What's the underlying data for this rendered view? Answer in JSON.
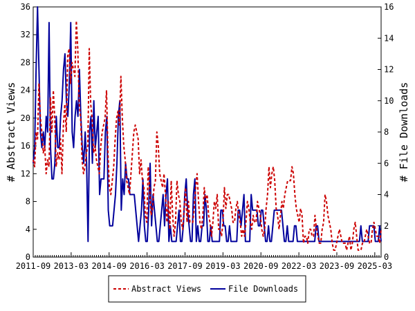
{
  "chart_data": {
    "type": "line",
    "ylabel_left": "# Abstract Views",
    "ylabel_right": "# File Downloads",
    "ylim_left": [
      0,
      36
    ],
    "ylim_right": [
      0,
      16
    ],
    "yticks_left": [
      "0",
      "4",
      "8",
      "12",
      "16",
      "20",
      "24",
      "28",
      "32",
      "36"
    ],
    "yticks_right": [
      "0",
      "2",
      "4",
      "6",
      "8",
      "10",
      "12",
      "14",
      "16"
    ],
    "xticks": [
      "2011-09",
      "2013-03",
      "2014-09",
      "2016-03",
      "2017-09",
      "2019-03",
      "2020-09",
      "2022-03",
      "2023-09",
      "2025-03"
    ],
    "x_start": "2011-09",
    "x_end": "2025-06",
    "grid": false,
    "legend_position": "bottom",
    "series": [
      {
        "name": "Abstract Views",
        "axis": "left",
        "color": "#cc0000",
        "style": "dashed",
        "values": [
          14,
          13,
          18,
          17,
          25,
          20,
          18,
          15,
          16,
          12,
          14,
          13,
          23,
          18,
          24,
          20,
          13,
          15,
          14,
          17,
          12,
          19,
          22,
          18,
          29,
          30,
          25,
          28,
          27,
          26,
          34,
          30,
          22,
          20,
          14,
          12,
          13,
          15,
          16,
          30,
          22,
          20,
          15,
          16,
          14,
          13,
          12,
          16,
          18,
          19,
          20,
          24,
          15,
          10,
          9,
          11,
          13,
          17,
          20,
          21,
          19,
          26,
          20,
          16,
          14,
          11,
          10,
          9,
          12,
          15,
          18,
          19,
          18,
          17,
          12,
          14,
          11,
          10,
          6,
          5,
          13,
          10,
          6,
          7,
          10,
          11,
          18,
          16,
          12,
          11,
          10,
          12,
          9,
          5,
          8,
          4,
          11,
          6,
          3,
          5,
          11,
          9,
          8,
          5,
          4,
          7,
          10,
          5,
          8,
          5,
          5,
          5,
          7,
          10,
          12,
          8,
          5,
          4,
          6,
          10,
          8,
          9,
          6,
          5,
          3,
          5,
          8,
          7,
          9,
          4,
          4,
          3,
          5,
          10,
          7,
          9,
          9,
          8,
          7,
          5,
          5,
          7,
          8,
          6,
          5,
          3,
          4,
          3,
          5,
          8,
          7,
          5,
          4,
          6,
          5,
          5,
          8,
          7,
          6,
          4,
          3,
          4,
          7,
          9,
          13,
          10,
          12,
          13,
          11,
          7,
          6,
          4,
          6,
          8,
          7,
          9,
          10,
          11,
          11,
          11,
          13,
          12,
          9,
          7,
          6,
          5,
          7,
          6,
          2,
          3,
          3,
          2,
          4,
          4,
          3,
          3,
          6,
          4,
          3,
          2,
          2,
          4,
          5,
          9,
          8,
          6,
          5,
          4,
          2,
          1,
          1,
          2,
          3,
          4,
          3,
          2,
          2,
          2,
          1,
          2,
          3,
          1,
          2,
          4,
          5,
          3,
          1,
          1,
          1,
          2,
          2,
          3,
          4,
          3,
          2,
          2,
          4,
          5,
          4,
          3,
          3,
          2,
          4
        ]
      },
      {
        "name": "File Downloads",
        "axis": "right",
        "color": "#00009c",
        "style": "solid",
        "values": [
          6,
          7,
          12,
          16,
          12,
          8,
          7,
          8,
          7,
          9,
          8,
          15,
          7,
          5,
          5,
          6,
          9,
          7,
          7,
          9,
          10,
          12,
          13,
          10,
          9,
          11,
          15,
          8,
          7,
          9,
          10,
          9,
          12,
          9,
          7,
          6,
          8,
          6,
          1,
          8,
          9,
          6,
          10,
          7,
          8,
          9,
          4,
          5,
          5,
          5,
          8,
          9,
          3,
          2,
          2,
          2,
          3,
          4,
          6,
          9,
          10,
          3,
          5,
          4,
          6,
          5,
          5,
          4,
          4,
          4,
          4,
          3,
          2,
          1,
          2,
          3,
          5,
          2,
          1,
          1,
          3,
          6,
          2,
          4,
          3,
          2,
          1,
          1,
          2,
          3,
          4,
          2,
          4,
          5,
          1,
          2,
          1,
          1,
          1,
          1,
          2,
          3,
          1,
          1,
          2,
          4,
          5,
          3,
          2,
          1,
          1,
          4,
          5,
          1,
          2,
          1,
          1,
          2,
          2,
          4,
          3,
          1,
          1,
          2,
          1,
          1,
          1,
          1,
          1,
          1,
          3,
          3,
          2,
          2,
          1,
          1,
          2,
          1,
          1,
          1,
          1,
          1,
          3,
          3,
          2,
          3,
          4,
          1,
          1,
          1,
          1,
          4,
          3,
          3,
          3,
          3,
          2,
          2,
          3,
          3,
          2,
          1,
          1,
          2,
          1,
          1,
          2,
          3,
          3,
          3,
          3,
          3,
          3,
          2,
          1,
          1,
          2,
          1,
          1,
          1,
          1,
          2,
          2,
          1,
          1,
          1,
          1,
          1,
          1,
          1,
          1,
          1,
          1,
          1,
          1,
          1,
          2,
          2,
          1,
          1,
          1,
          1,
          1,
          1,
          1,
          1,
          1,
          1,
          1,
          1,
          1,
          1,
          1,
          1,
          1,
          1,
          1,
          1,
          1,
          1,
          1,
          1,
          1,
          1,
          1,
          1,
          1,
          2,
          1,
          1,
          1,
          1,
          1,
          2,
          2,
          2,
          2,
          1,
          1,
          1,
          2,
          1
        ]
      }
    ]
  }
}
